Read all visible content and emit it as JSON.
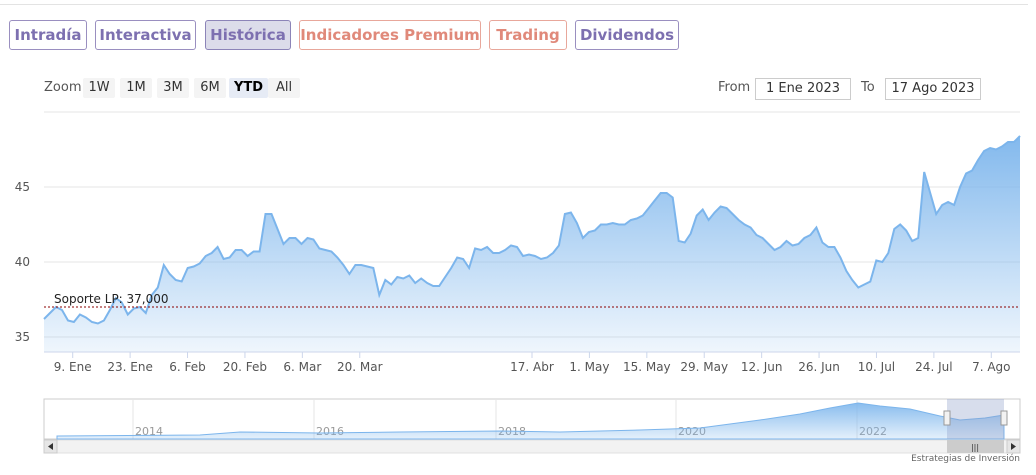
{
  "tabs": [
    {
      "label": "Intradía"
    },
    {
      "label": "Interactiva"
    },
    {
      "label": "Histórica"
    },
    {
      "label": "Indicadores Premium"
    },
    {
      "label": "Trading"
    },
    {
      "label": "Dividendos"
    }
  ],
  "toolbar": {
    "zoom_label": "Zoom",
    "zoom_buttons": [
      "1W",
      "1M",
      "3M",
      "6M",
      "YTD",
      "All"
    ],
    "selected_zoom": "YTD",
    "from_label": "From",
    "from_value": "1 Ene 2023",
    "to_label": "To",
    "to_value": "17 Ago 2023"
  },
  "colors": {
    "tab_accent": "#7d70b0",
    "premium_accent": "#e0897a",
    "line": "#7cb5ec",
    "support": "#8b0000"
  },
  "credit": "Estrategias de Inversión",
  "chart_data": {
    "type": "area",
    "ylim": [
      34,
      50
    ],
    "y_ticks": [
      35,
      40,
      45
    ],
    "x_ticks": [
      "9. Ene",
      "23. Ene",
      "6. Feb",
      "20. Feb",
      "6. Mar",
      "20. Mar",
      "17. Abr",
      "1. May",
      "15. May",
      "29. May",
      "12. Jun",
      "26. Jun",
      "10. Jul",
      "24. Jul",
      "7. Ago"
    ],
    "support_line": {
      "label": "Soporte LP: 37,000",
      "value": 37.0
    },
    "series": [
      {
        "values": [
          36.2,
          36.6,
          37.0,
          36.8,
          36.1,
          36.0,
          36.5,
          36.3,
          36.0,
          35.9,
          36.1,
          36.8,
          37.6,
          37.3,
          36.5,
          36.9,
          37.0,
          36.6,
          37.8,
          38.3,
          39.8,
          39.2,
          38.8,
          38.7,
          39.6,
          39.7,
          39.9,
          40.4,
          40.6,
          41.0,
          40.2,
          40.3,
          40.8,
          40.8,
          40.4,
          40.7,
          40.7,
          43.2,
          43.2,
          42.2,
          41.2,
          41.6,
          41.6,
          41.2,
          41.6,
          41.5,
          40.9,
          40.8,
          40.7,
          40.3,
          39.8,
          39.2,
          39.8,
          39.8,
          39.7,
          39.6,
          37.8,
          38.8,
          38.5,
          39.0,
          38.9,
          39.1,
          38.6,
          38.9,
          38.6,
          38.4,
          38.4,
          39.0,
          39.6,
          40.3,
          40.2,
          39.6,
          40.9,
          40.8,
          41.0,
          40.6,
          40.6,
          40.8,
          41.1,
          41.0,
          40.4,
          40.5,
          40.4,
          40.2,
          40.3,
          40.6,
          41.1,
          43.2,
          43.3,
          42.6,
          41.6,
          42.0,
          42.1,
          42.5,
          42.5,
          42.6,
          42.5,
          42.5,
          42.8,
          42.9,
          43.1,
          43.6,
          44.1,
          44.6,
          44.6,
          44.3,
          41.4,
          41.3,
          41.9,
          43.1,
          43.5,
          42.8,
          43.3,
          43.7,
          43.6,
          43.2,
          42.8,
          42.5,
          42.3,
          41.8,
          41.6,
          41.2,
          40.8,
          41.0,
          41.4,
          41.1,
          41.2,
          41.6,
          41.8,
          42.3,
          41.3,
          41.0,
          41.0,
          40.3,
          39.4,
          38.8,
          38.3,
          38.5,
          38.7,
          40.1,
          40.0,
          40.6,
          42.2,
          42.5,
          42.1,
          41.4,
          41.6,
          46.0,
          44.6,
          43.2,
          43.8,
          44.0,
          43.8,
          45.0,
          45.9,
          46.1,
          46.8,
          47.4,
          47.6,
          47.5,
          47.7,
          48.0,
          48.0,
          48.4
        ]
      }
    ],
    "navigator": {
      "x_ticks": [
        "2014",
        "2016",
        "2018",
        "2020",
        "2022"
      ]
    }
  }
}
